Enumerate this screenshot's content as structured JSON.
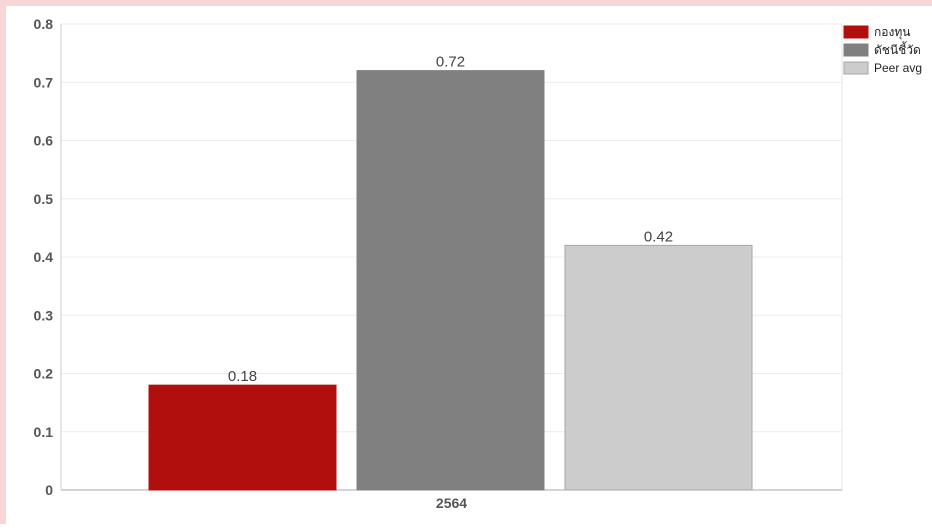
{
  "chart_data": {
    "type": "bar",
    "categories": [
      "2564"
    ],
    "series": [
      {
        "name": "กองทุน",
        "values": [
          0.18
        ],
        "color": "#b10f0d"
      },
      {
        "name": "ดัชนีชี้วัด",
        "values": [
          0.72
        ],
        "color": "#808080"
      },
      {
        "name": "Peer avg",
        "values": [
          0.42
        ],
        "color": "#cccccc"
      }
    ],
    "data_labels": [
      "0.18",
      "0.72",
      "0.42"
    ],
    "y_ticks": [
      "0",
      "0.1",
      "0.2",
      "0.3",
      "0.4",
      "0.5",
      "0.6",
      "0.7",
      "0.8"
    ],
    "ylim": [
      0,
      0.8
    ],
    "grid": true,
    "legend_position": "top-right"
  }
}
